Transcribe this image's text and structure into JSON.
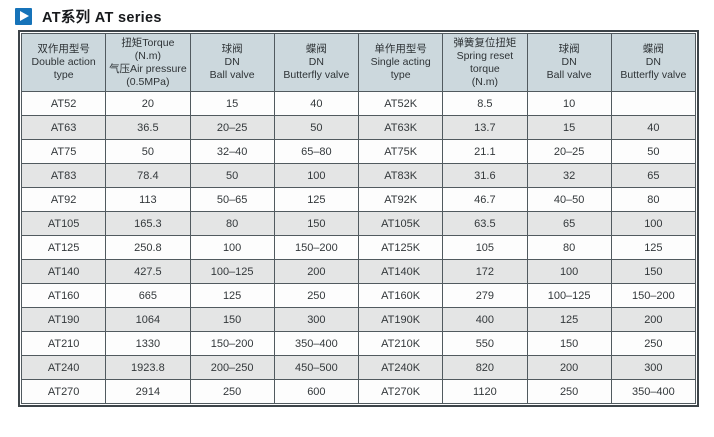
{
  "page_title": {
    "icon": "play-icon",
    "text": "AT系列 AT series"
  },
  "colors": {
    "accent_blue": "#1673b9",
    "header_bg": "#ccd8dd",
    "row_alt_bg": "#e4e5e5",
    "row_bg": "#fdfdfd",
    "border": "#515a5f"
  },
  "table": {
    "headers": [
      {
        "lines": [
          "双作用型号",
          "Double action",
          "type"
        ]
      },
      {
        "lines": [
          "扭矩Torque",
          "(N.m)",
          "气压Air pressure",
          "(0.5MPa)"
        ]
      },
      {
        "lines": [
          "球阀",
          "DN",
          "Ball valve"
        ]
      },
      {
        "lines": [
          "蝶阀",
          "DN",
          "Butterfly valve"
        ]
      },
      {
        "lines": [
          "单作用型号",
          "Single acting",
          "type"
        ]
      },
      {
        "lines": [
          "弹簧复位扭矩",
          "Spring reset",
          "torque",
          "(N.m)"
        ]
      },
      {
        "lines": [
          "球阀",
          "DN",
          "Ball valve"
        ]
      },
      {
        "lines": [
          "蝶阀",
          "DN",
          "Butterfly valve"
        ]
      }
    ],
    "rows": [
      [
        "AT52",
        "20",
        "15",
        "40",
        "AT52K",
        "8.5",
        "10",
        ""
      ],
      [
        "AT63",
        "36.5",
        "20–25",
        "50",
        "AT63K",
        "13.7",
        "15",
        "40"
      ],
      [
        "AT75",
        "50",
        "32–40",
        "65–80",
        "AT75K",
        "21.1",
        "20–25",
        "50"
      ],
      [
        "AT83",
        "78.4",
        "50",
        "100",
        "AT83K",
        "31.6",
        "32",
        "65"
      ],
      [
        "AT92",
        "113",
        "50–65",
        "125",
        "AT92K",
        "46.7",
        "40–50",
        "80"
      ],
      [
        "AT105",
        "165.3",
        "80",
        "150",
        "AT105K",
        "63.5",
        "65",
        "100"
      ],
      [
        "AT125",
        "250.8",
        "100",
        "150–200",
        "AT125K",
        "105",
        "80",
        "125"
      ],
      [
        "AT140",
        "427.5",
        "100–125",
        "200",
        "AT140K",
        "172",
        "100",
        "150"
      ],
      [
        "AT160",
        "665",
        "125",
        "250",
        "AT160K",
        "279",
        "100–125",
        "150–200"
      ],
      [
        "AT190",
        "1064",
        "150",
        "300",
        "AT190K",
        "400",
        "125",
        "200"
      ],
      [
        "AT210",
        "1330",
        "150–200",
        "350–400",
        "AT210K",
        "550",
        "150",
        "250"
      ],
      [
        "AT240",
        "1923.8",
        "200–250",
        "450–500",
        "AT240K",
        "820",
        "200",
        "300"
      ],
      [
        "AT270",
        "2914",
        "250",
        "600",
        "AT270K",
        "1120",
        "250",
        "350–400"
      ]
    ]
  }
}
